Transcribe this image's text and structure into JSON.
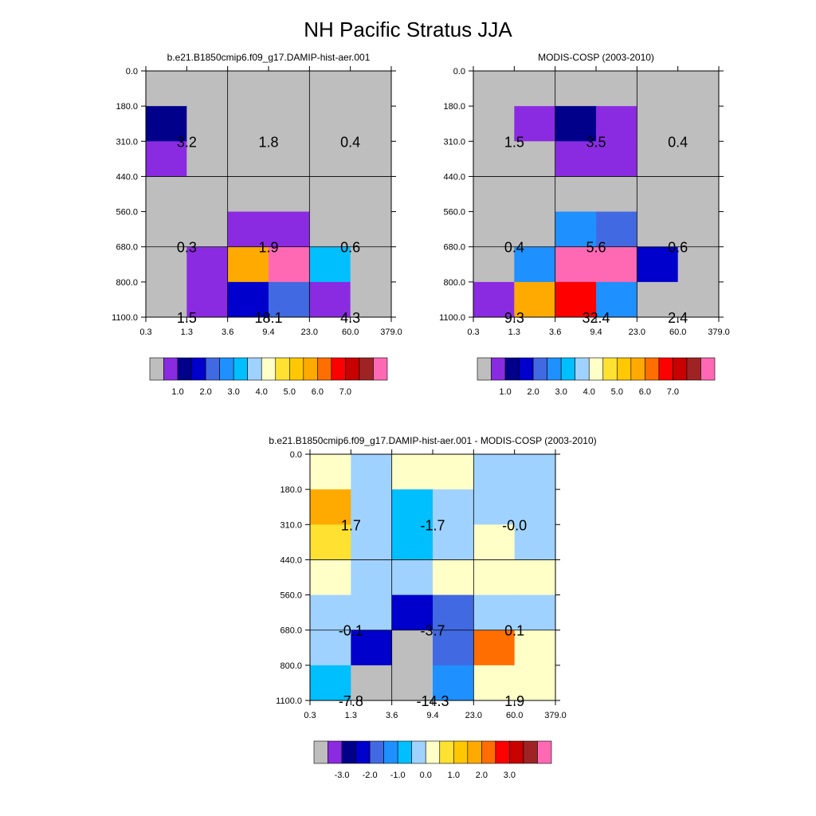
{
  "main_title": "NH Pacific Stratus JJA",
  "chart_data": [
    {
      "type": "heatmap",
      "title": "b.e21.B1850cmip6.f09_g17.DAMIP-hist-aer.001",
      "x_tick_labels": [
        "0.3",
        "1.3",
        "3.6",
        "9.4",
        "23.0",
        "60.0",
        "379.0"
      ],
      "y_tick_labels": [
        "0.0",
        "180.0",
        "310.0",
        "440.0",
        "560.0",
        "680.0",
        "800.0",
        "1100.0"
      ],
      "cells": [
        [
          "gray",
          "gray",
          "gray",
          "gray",
          "gray",
          "gray"
        ],
        [
          "c2",
          "gray",
          "gray",
          "gray",
          "gray",
          "gray"
        ],
        [
          "c1",
          "gray",
          "gray",
          "gray",
          "gray",
          "gray"
        ],
        [
          "gray",
          "gray",
          "gray",
          "gray",
          "gray",
          "gray"
        ],
        [
          "gray",
          "gray",
          "c1",
          "c1",
          "gray",
          "gray"
        ],
        [
          "gray",
          "c1",
          "c11",
          "c16",
          "c6",
          "gray"
        ],
        [
          "gray",
          "c1",
          "c3",
          "c4",
          "c1",
          "gray"
        ]
      ],
      "annotations": [
        {
          "value": "3.2",
          "col": 0,
          "row": 1
        },
        {
          "value": "1.8",
          "col": 2,
          "row": 1
        },
        {
          "value": "0.4",
          "col": 4,
          "row": 1
        },
        {
          "value": "0.3",
          "col": 0,
          "row": 4
        },
        {
          "value": "1.9",
          "col": 2,
          "row": 4
        },
        {
          "value": "0.6",
          "col": 4,
          "row": 4
        },
        {
          "value": "1.5",
          "col": 0,
          "row": 6
        },
        {
          "value": "18.1",
          "col": 2,
          "row": 6
        },
        {
          "value": "4.3",
          "col": 4,
          "row": 6
        }
      ],
      "colorbar": {
        "colors": [
          "gray",
          "c1",
          "c2",
          "c3",
          "c4",
          "c5",
          "c6",
          "c7",
          "c8",
          "c9",
          "c10",
          "c11",
          "c12",
          "c13",
          "c14",
          "c15",
          "c16"
        ],
        "labels": [
          "1.0",
          "2.0",
          "3.0",
          "4.0",
          "5.0",
          "6.0",
          "7.0"
        ]
      }
    },
    {
      "type": "heatmap",
      "title": "MODIS-COSP (2003-2010)",
      "x_tick_labels": [
        "0.3",
        "1.3",
        "3.6",
        "9.4",
        "23.0",
        "60.0",
        "379.0"
      ],
      "y_tick_labels": [
        "0.0",
        "180.0",
        "310.0",
        "440.0",
        "560.0",
        "680.0",
        "800.0",
        "1100.0"
      ],
      "cells": [
        [
          "gray",
          "gray",
          "gray",
          "gray",
          "gray",
          "gray"
        ],
        [
          "gray",
          "c1",
          "c2",
          "c1",
          "gray",
          "gray"
        ],
        [
          "gray",
          "gray",
          "c1",
          "c1",
          "gray",
          "gray"
        ],
        [
          "gray",
          "gray",
          "gray",
          "gray",
          "gray",
          "gray"
        ],
        [
          "gray",
          "gray",
          "c5",
          "c4",
          "gray",
          "gray"
        ],
        [
          "gray",
          "c5",
          "c16",
          "c16",
          "c3",
          "gray"
        ],
        [
          "c1",
          "c11",
          "c13",
          "c5",
          "gray",
          "gray"
        ]
      ],
      "annotations": [
        {
          "value": "1.5",
          "col": 0,
          "row": 1
        },
        {
          "value": "3.5",
          "col": 2,
          "row": 1
        },
        {
          "value": "0.4",
          "col": 4,
          "row": 1
        },
        {
          "value": "0.4",
          "col": 0,
          "row": 4
        },
        {
          "value": "5.6",
          "col": 2,
          "row": 4
        },
        {
          "value": "0.6",
          "col": 4,
          "row": 4
        },
        {
          "value": "9.3",
          "col": 0,
          "row": 6
        },
        {
          "value": "32.4",
          "col": 2,
          "row": 6
        },
        {
          "value": "2.4",
          "col": 4,
          "row": 6
        }
      ],
      "colorbar": {
        "colors": [
          "gray",
          "c1",
          "c2",
          "c3",
          "c4",
          "c5",
          "c6",
          "c7",
          "c8",
          "c9",
          "c10",
          "c11",
          "c12",
          "c13",
          "c14",
          "c15",
          "c16"
        ],
        "labels": [
          "1.0",
          "2.0",
          "3.0",
          "4.0",
          "5.0",
          "6.0",
          "7.0"
        ]
      }
    },
    {
      "type": "heatmap",
      "title": "b.e21.B1850cmip6.f09_g17.DAMIP-hist-aer.001 - MODIS-COSP (2003-2010)",
      "x_tick_labels": [
        "0.3",
        "1.3",
        "3.6",
        "9.4",
        "23.0",
        "60.0",
        "379.0"
      ],
      "y_tick_labels": [
        "0.0",
        "180.0",
        "310.0",
        "440.0",
        "560.0",
        "680.0",
        "800.0",
        "1100.0"
      ],
      "cells": [
        [
          "c8",
          "c7",
          "c8",
          "c8",
          "c7",
          "c7"
        ],
        [
          "c11",
          "c7",
          "c6",
          "c7",
          "c7",
          "c7"
        ],
        [
          "c9",
          "c7",
          "c6",
          "c7",
          "c8",
          "c7"
        ],
        [
          "c8",
          "c7",
          "c7",
          "c8",
          "c8",
          "c8"
        ],
        [
          "c7",
          "c7",
          "c3",
          "c4",
          "c7",
          "c7"
        ],
        [
          "c7",
          "c3",
          "gray",
          "c4",
          "c12",
          "c8"
        ],
        [
          "c6",
          "gray",
          "gray",
          "c5",
          "c8",
          "c8"
        ]
      ],
      "annotations": [
        {
          "value": "1.7",
          "col": 0,
          "row": 1
        },
        {
          "value": "-1.7",
          "col": 2,
          "row": 1
        },
        {
          "value": "-0.0",
          "col": 4,
          "row": 1
        },
        {
          "value": "-0.1",
          "col": 0,
          "row": 4
        },
        {
          "value": "-3.7",
          "col": 2,
          "row": 4
        },
        {
          "value": "0.1",
          "col": 4,
          "row": 4
        },
        {
          "value": "-7.8",
          "col": 0,
          "row": 6
        },
        {
          "value": "-14.3",
          "col": 2,
          "row": 6
        },
        {
          "value": "1.9",
          "col": 4,
          "row": 6
        }
      ],
      "colorbar": {
        "colors": [
          "gray",
          "c1",
          "c2",
          "c3",
          "c4",
          "c5",
          "c6",
          "c7",
          "c8",
          "c9",
          "c10",
          "c11",
          "c12",
          "c13",
          "c14",
          "c15",
          "c16"
        ],
        "labels": [
          "-3.0",
          "-2.0",
          "-1.0",
          "0.0",
          "1.0",
          "2.0",
          "3.0"
        ]
      }
    }
  ],
  "palette": {
    "gray": "#bebebe",
    "c1": "#8a2be2",
    "c2": "#00008b",
    "c3": "#0000cd",
    "c4": "#4169e1",
    "c5": "#1e90ff",
    "c6": "#00bfff",
    "c7": "#a0d2ff",
    "c8": "#ffffc8",
    "c9": "#ffe132",
    "c10": "#ffc800",
    "c11": "#ffaa00",
    "c12": "#ff6e00",
    "c13": "#ff0000",
    "c14": "#c80000",
    "c15": "#a02323",
    "c16": "#ff69b4"
  }
}
